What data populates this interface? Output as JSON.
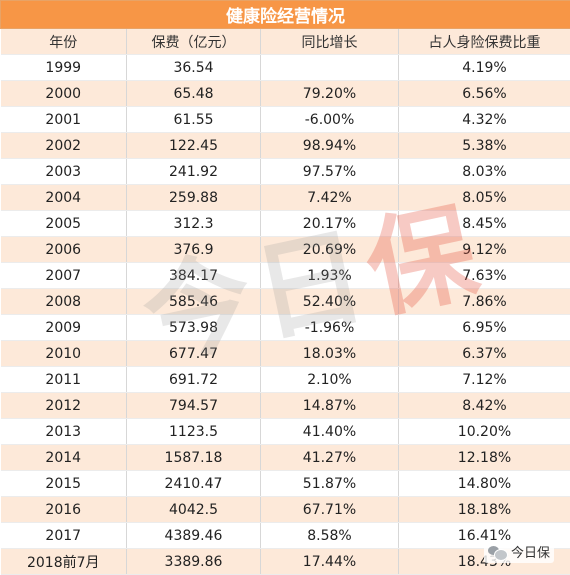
{
  "title": "健康险经营情况",
  "columns": [
    "年份",
    "保费（亿元）",
    "同比增长",
    "占人身险保费比重"
  ],
  "rows": [
    {
      "year": "1999",
      "premium": "36.54",
      "yoy": "",
      "share": "4.19%"
    },
    {
      "year": "2000",
      "premium": "65.48",
      "yoy": "79.20%",
      "share": "6.56%"
    },
    {
      "year": "2001",
      "premium": "61.55",
      "yoy": "-6.00%",
      "share": "4.32%"
    },
    {
      "year": "2002",
      "premium": "122.45",
      "yoy": "98.94%",
      "share": "5.38%"
    },
    {
      "year": "2003",
      "premium": "241.92",
      "yoy": "97.57%",
      "share": "8.03%"
    },
    {
      "year": "2004",
      "premium": "259.88",
      "yoy": "7.42%",
      "share": "8.05%"
    },
    {
      "year": "2005",
      "premium": "312.3",
      "yoy": "20.17%",
      "share": "8.45%"
    },
    {
      "year": "2006",
      "premium": "376.9",
      "yoy": "20.69%",
      "share": "9.12%"
    },
    {
      "year": "2007",
      "premium": "384.17",
      "yoy": "1.93%",
      "share": "7.63%"
    },
    {
      "year": "2008",
      "premium": "585.46",
      "yoy": "52.40%",
      "share": "7.86%"
    },
    {
      "year": "2009",
      "premium": "573.98",
      "yoy": "-1.96%",
      "share": "6.95%"
    },
    {
      "year": "2010",
      "premium": "677.47",
      "yoy": "18.03%",
      "share": "6.37%"
    },
    {
      "year": "2011",
      "premium": "691.72",
      "yoy": "2.10%",
      "share": "7.12%"
    },
    {
      "year": "2012",
      "premium": "794.57",
      "yoy": "14.87%",
      "share": "8.42%"
    },
    {
      "year": "2013",
      "premium": "1123.5",
      "yoy": "41.40%",
      "share": "10.20%"
    },
    {
      "year": "2014",
      "premium": "1587.18",
      "yoy": "41.27%",
      "share": "12.18%"
    },
    {
      "year": "2015",
      "premium": "2410.47",
      "yoy": "51.87%",
      "share": "14.80%"
    },
    {
      "year": "2016",
      "premium": "4042.5",
      "yoy": "67.71%",
      "share": "18.18%"
    },
    {
      "year": "2017",
      "premium": "4389.46",
      "yoy": "8.58%",
      "share": "16.41%"
    },
    {
      "year": "2018前7月",
      "premium": "3389.86",
      "yoy": "17.44%",
      "share": "18.43%"
    }
  ],
  "watermark": {
    "left": "今日",
    "right": "保"
  },
  "brand": {
    "name": "今日保",
    "icon": "wechat-icon"
  },
  "colors": {
    "title_bg": "#f79646",
    "stripe": "#fde9d9"
  }
}
